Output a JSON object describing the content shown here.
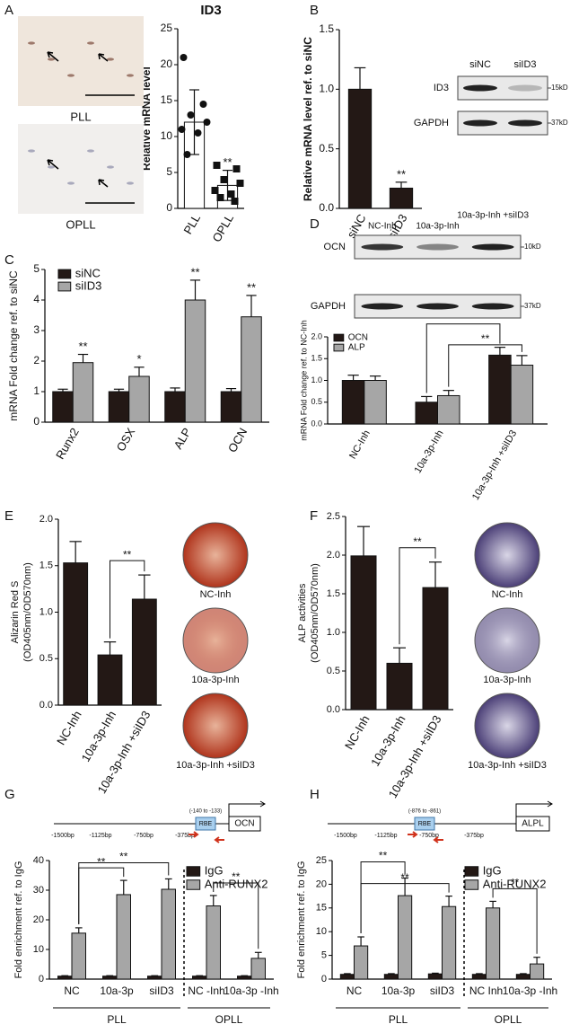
{
  "chart_data": [
    {
      "type": "bar",
      "panel": "A",
      "title": "ID3",
      "ylabel": "Relative mRNA level",
      "photo_labels": [
        "PLL",
        "OPLL"
      ],
      "categories": [
        "PLL",
        "OPLL"
      ],
      "series": [
        {
          "color": "#ffffff",
          "values": [
            12,
            3.2
          ],
          "errors": [
            4.5,
            2.1
          ],
          "points": [
            [
              21,
              14.5,
              13,
              12,
              11,
              10.5,
              7.5
            ],
            [
              6,
              5.5,
              4,
              3.5,
              2.5,
              2,
              1.5,
              1
            ]
          ]
        }
      ],
      "ylim": [
        0,
        25
      ],
      "yticks": [
        0,
        5,
        10,
        15,
        20,
        25
      ],
      "significance": [
        "**"
      ]
    },
    {
      "type": "bar",
      "panel": "B",
      "ylabel": "Relative mRNA level ref. to siNC",
      "blot": {
        "lanes": [
          "siNC",
          "siID3"
        ],
        "rows": [
          "ID3",
          "GAPDH"
        ],
        "sizes": [
          "15kD",
          "37kD"
        ]
      },
      "categories": [
        "siNC",
        "siID3"
      ],
      "series": [
        {
          "color": "#231815",
          "values": [
            1.0,
            0.17
          ],
          "errors": [
            0.18,
            0.05
          ]
        }
      ],
      "ylim": [
        0,
        1.5
      ],
      "yticks": [
        {
          "value": 0,
          "label": "0.0"
        },
        0.5,
        {
          "value": 1,
          "label": "1.0"
        },
        1.5
      ],
      "significance": [
        "**"
      ]
    },
    {
      "type": "bar",
      "panel": "C",
      "ylabel": "mRNA Fold change ref. to siNC",
      "categories": [
        "Runx2",
        "OSX",
        "ALP",
        "OCN"
      ],
      "series": [
        {
          "name": "siNC",
          "color": "#231815",
          "values": [
            1,
            1,
            1,
            1
          ],
          "errors": [
            0.08,
            0.08,
            0.12,
            0.1
          ]
        },
        {
          "name": "siID3",
          "color": "#a6a6a6",
          "values": [
            1.95,
            1.5,
            4,
            3.45
          ],
          "errors": [
            0.27,
            0.3,
            0.65,
            0.7
          ]
        }
      ],
      "ylim": [
        0,
        5
      ],
      "yticks": [
        0,
        1,
        2,
        3,
        4,
        5
      ],
      "significance": [
        "**",
        "*",
        "**",
        "**"
      ]
    },
    {
      "type": "bar",
      "panel": "D",
      "ylabel": "mRNA Fold change ref. to NC-Inh",
      "blot": {
        "lanes": [
          "NC-Inh",
          "10a-3p-Inh",
          "10a-3p-Inh +siID3"
        ],
        "rows": [
          "OCN",
          "GAPDH"
        ],
        "sizes": [
          "10kD",
          "37kD"
        ]
      },
      "categories": [
        "NC-Inh",
        "10a-3p-Inh",
        "10a-3p-Inh +siID3"
      ],
      "series": [
        {
          "name": "OCN",
          "color": "#231815",
          "values": [
            1.0,
            0.5,
            1.58
          ],
          "errors": [
            0.12,
            0.13,
            0.18
          ]
        },
        {
          "name": "ALP",
          "color": "#a6a6a6",
          "values": [
            1.0,
            0.65,
            1.35
          ],
          "errors": [
            0.1,
            0.12,
            0.22
          ]
        }
      ],
      "ylim": [
        0,
        2
      ],
      "yticks": [
        {
          "value": 0,
          "label": "0.0"
        },
        0.5,
        {
          "value": 1,
          "label": "1.0"
        },
        1.5,
        {
          "value": 2,
          "label": "2.0"
        }
      ],
      "significance": [
        "**",
        "**"
      ]
    },
    {
      "type": "bar",
      "panel": "E",
      "ylabel": [
        "Alizarin Red S",
        "(OD405nm/OD570nm)"
      ],
      "photo_labels": [
        "NC-Inh",
        "10a-3p-Inh",
        "10a-3p-Inh +siID3"
      ],
      "categories": [
        "NC-Inh",
        "10a-3p-Inh",
        "10a-3p-Inh +siID3"
      ],
      "series": [
        {
          "color": "#231815",
          "values": [
            1.53,
            0.54,
            1.14
          ],
          "errors": [
            0.23,
            0.14,
            0.26
          ]
        }
      ],
      "ylim": [
        0,
        2
      ],
      "yticks": [
        {
          "value": 0,
          "label": "0.0"
        },
        0.5,
        {
          "value": 1,
          "label": "1.0"
        },
        1.5,
        {
          "value": 2,
          "label": "2.0"
        }
      ],
      "significance": [
        "**"
      ]
    },
    {
      "type": "bar",
      "panel": "F",
      "ylabel": [
        "ALP activities",
        "(OD405nm/OD570nm)"
      ],
      "photo_labels": [
        "NC-Inh",
        "10a-3p-Inh",
        "10a-3p-Inh +siID3"
      ],
      "categories": [
        "NC-Inh",
        "10a-3p-Inh",
        "10a-3p-Inh +siID3"
      ],
      "series": [
        {
          "color": "#231815",
          "values": [
            1.99,
            0.6,
            1.58
          ],
          "errors": [
            0.38,
            0.2,
            0.33
          ]
        }
      ],
      "ylim": [
        0,
        2.5
      ],
      "yticks": [
        {
          "value": 0,
          "label": "0.0"
        },
        0.5,
        {
          "value": 1,
          "label": "1.0"
        },
        1.5,
        {
          "value": 2,
          "label": "2.0"
        },
        2.5
      ],
      "significance": [
        "**"
      ]
    },
    {
      "type": "bar",
      "panel": "G",
      "ylabel": "Fold enrichment ref. to IgG",
      "promoter": {
        "positions": [
          "-1500bp",
          "-1125bp",
          "-750bp",
          "-375bp"
        ],
        "site": "(-140 to -133)",
        "element": "RBE",
        "gene": "OCN"
      },
      "groups": [
        "PLL",
        "OPLL"
      ],
      "categories": [
        "NC",
        "10a-3p",
        "siID3",
        "NC -Inh",
        "10a-3p -Inh"
      ],
      "series": [
        {
          "name": "IgG",
          "color": "#231815",
          "values": [
            1,
            1,
            1,
            1,
            1
          ],
          "errors": [
            0.15,
            0.15,
            0.15,
            0.15,
            0.15
          ]
        },
        {
          "name": "Anti-RUNX2",
          "color": "#a6a6a6",
          "values": [
            15.5,
            28.5,
            30.3,
            24.7,
            7
          ],
          "errors": [
            1.8,
            4.8,
            3.5,
            3.5,
            2
          ]
        }
      ],
      "ylim": [
        0,
        40
      ],
      "yticks": [
        0,
        10,
        20,
        30,
        40
      ],
      "significance": [
        "**",
        "**",
        "**"
      ]
    },
    {
      "type": "bar",
      "panel": "H",
      "ylabel": "Fold enrichment ref. to IgG",
      "promoter": {
        "positions": [
          "-1500bp",
          "-1125bp",
          "-750bp",
          "-375bp"
        ],
        "site": "(-876 to -861)",
        "element": "RBE",
        "gene": "ALPL"
      },
      "groups": [
        "PLL",
        "OPLL"
      ],
      "categories": [
        "NC",
        "10a-3p",
        "siID3",
        "NC Inh",
        "10a-3p -Inh"
      ],
      "series": [
        {
          "name": "IgG",
          "color": "#231815",
          "values": [
            1,
            1,
            1.1,
            1,
            1
          ],
          "errors": [
            0.15,
            0.15,
            0.15,
            0.15,
            0.15
          ]
        },
        {
          "name": "Anti-RUNX2",
          "color": "#a6a6a6",
          "values": [
            7,
            17.6,
            15.3,
            15,
            3.2
          ],
          "errors": [
            1.9,
            3.7,
            2.2,
            1.4,
            1.4
          ]
        }
      ],
      "ylim": [
        0,
        25
      ],
      "yticks": [
        0,
        5,
        10,
        15,
        20,
        25
      ],
      "significance": [
        "**",
        "**",
        "**"
      ]
    }
  ]
}
